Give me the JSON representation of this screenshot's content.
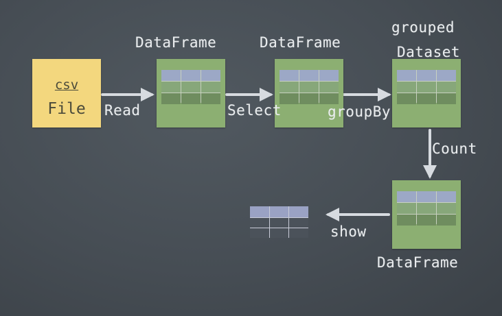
{
  "nodes": {
    "csv": {
      "line1": "csv",
      "line2": "File"
    },
    "df1": {
      "label": "DataFrame"
    },
    "df2": {
      "label": "DataFrame"
    },
    "grouped": {
      "line1": "grouped",
      "line2": "Dataset"
    },
    "df3": {
      "label": "DataFrame"
    }
  },
  "edges": {
    "read": "Read",
    "select": "Select",
    "groupby": "groupBy",
    "count": "Count",
    "show": "show"
  },
  "colors": {
    "background": "#474e55",
    "csv_box": "#f3d77e",
    "dataframe_box": "#8caf72",
    "arrow": "#d7dbe0"
  }
}
